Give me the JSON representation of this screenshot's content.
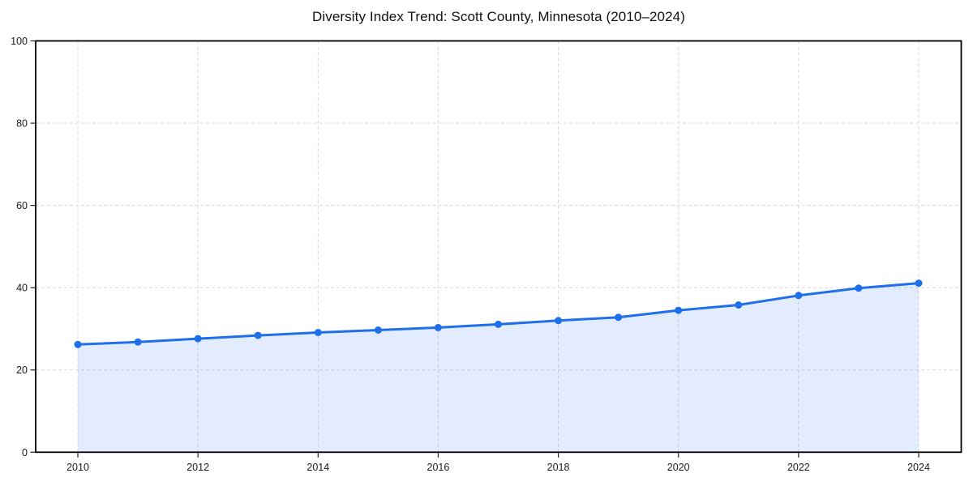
{
  "chart_data": {
    "type": "line",
    "title": "Diversity Index Trend: Scott County, Minnesota (2010–2024)",
    "xlabel": "",
    "ylabel": "",
    "x": [
      2010,
      2011,
      2012,
      2013,
      2014,
      2015,
      2016,
      2017,
      2018,
      2019,
      2020,
      2021,
      2022,
      2023,
      2024
    ],
    "series": [
      {
        "name": "Diversity Index",
        "values": [
          26.2,
          26.8,
          27.6,
          28.4,
          29.1,
          29.7,
          30.3,
          31.1,
          32.0,
          32.8,
          34.5,
          35.8,
          38.1,
          39.9,
          41.1
        ]
      }
    ],
    "xlim": [
      2010,
      2024
    ],
    "ylim": [
      0,
      100
    ],
    "xticks": [
      2010,
      2012,
      2014,
      2016,
      2018,
      2020,
      2022,
      2024
    ],
    "yticks": [
      0,
      20,
      40,
      60,
      80,
      100
    ],
    "grid": true,
    "grid_style": "dashed",
    "legend_position": "none",
    "marker": "circle",
    "area_fill": true,
    "style": {
      "line_color": "#1f6feb",
      "marker_color": "#1f6feb",
      "fill_color": "rgba(31,111,235,0.13)",
      "grid_color": "#d9d9d9",
      "spine_color": "#000000",
      "tick_mark_color": "#222222",
      "tick_label_color": "#1a1a1a",
      "title_color": "#111111",
      "background": "#ffffff"
    }
  }
}
